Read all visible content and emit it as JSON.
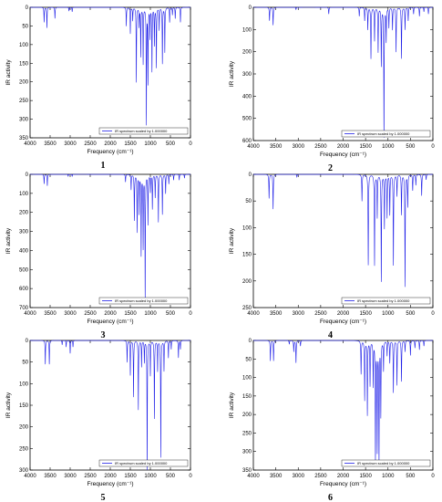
{
  "figure": {
    "background": "#ffffff",
    "line_color": "#1f1fe8"
  },
  "chart_data": [
    {
      "type": "line",
      "label": "1",
      "xlabel": "Frequency (cm⁻¹)",
      "ylabel": "IR activity",
      "xlim": [
        4000,
        0
      ],
      "ylim": [
        350,
        0
      ],
      "xticks": [
        4000,
        3500,
        3000,
        2500,
        2000,
        1500,
        1000,
        500,
        0
      ],
      "yticks": [
        0,
        50,
        100,
        150,
        200,
        250,
        300,
        350
      ],
      "legend": "IR spectrum scaled by 1.000000",
      "legend_loc": "lower right",
      "peaks": [
        [
          3650,
          40
        ],
        [
          3580,
          55
        ],
        [
          3380,
          30
        ],
        [
          3030,
          10
        ],
        [
          2950,
          12
        ],
        [
          1600,
          50
        ],
        [
          1500,
          70
        ],
        [
          1440,
          35
        ],
        [
          1350,
          200
        ],
        [
          1280,
          50
        ],
        [
          1240,
          130
        ],
        [
          1180,
          150
        ],
        [
          1100,
          310
        ],
        [
          1060,
          200
        ],
        [
          1010,
          80
        ],
        [
          960,
          170
        ],
        [
          900,
          100
        ],
        [
          850,
          160
        ],
        [
          780,
          60
        ],
        [
          700,
          150
        ],
        [
          640,
          120
        ],
        [
          520,
          40
        ],
        [
          450,
          20
        ],
        [
          380,
          30
        ],
        [
          250,
          40
        ]
      ]
    },
    {
      "type": "line",
      "label": "2",
      "xlabel": "Frequency (cm⁻¹)",
      "ylabel": "IR activity",
      "xlim": [
        4000,
        0
      ],
      "ylim": [
        600,
        0
      ],
      "xticks": [
        4000,
        3500,
        3000,
        2500,
        2000,
        1500,
        1000,
        500,
        0
      ],
      "yticks": [
        0,
        100,
        200,
        300,
        400,
        500,
        600
      ],
      "legend": "IR spectrum scaled by 1.000000",
      "legend_loc": "lower right",
      "peaks": [
        [
          3640,
          60
        ],
        [
          3560,
          80
        ],
        [
          3050,
          10
        ],
        [
          2320,
          30
        ],
        [
          1640,
          40
        ],
        [
          1520,
          60
        ],
        [
          1450,
          100
        ],
        [
          1380,
          230
        ],
        [
          1300,
          150
        ],
        [
          1220,
          200
        ],
        [
          1150,
          260
        ],
        [
          1090,
          580
        ],
        [
          1040,
          150
        ],
        [
          980,
          90
        ],
        [
          900,
          100
        ],
        [
          820,
          200
        ],
        [
          700,
          230
        ],
        [
          620,
          100
        ],
        [
          550,
          60
        ],
        [
          430,
          30
        ],
        [
          300,
          40
        ],
        [
          200,
          20
        ],
        [
          100,
          30
        ]
      ]
    },
    {
      "type": "line",
      "label": "3",
      "xlabel": "Frequency (cm⁻¹)",
      "ylabel": "IR activity",
      "xlim": [
        4000,
        0
      ],
      "ylim": [
        700,
        0
      ],
      "xticks": [
        4000,
        3500,
        3000,
        2500,
        2000,
        1500,
        1000,
        500,
        0
      ],
      "yticks": [
        0,
        100,
        200,
        300,
        400,
        500,
        600,
        700
      ],
      "legend": "IR spectrum scaled by 1.000000",
      "legend_loc": "lower right",
      "peaks": [
        [
          3650,
          50
        ],
        [
          3570,
          60
        ],
        [
          3050,
          10
        ],
        [
          2950,
          10
        ],
        [
          1620,
          40
        ],
        [
          1480,
          80
        ],
        [
          1400,
          240
        ],
        [
          1330,
          300
        ],
        [
          1280,
          200
        ],
        [
          1230,
          420
        ],
        [
          1180,
          380
        ],
        [
          1130,
          650
        ],
        [
          1060,
          260
        ],
        [
          1000,
          90
        ],
        [
          950,
          180
        ],
        [
          880,
          120
        ],
        [
          800,
          250
        ],
        [
          700,
          210
        ],
        [
          620,
          100
        ],
        [
          540,
          50
        ],
        [
          420,
          30
        ],
        [
          280,
          30
        ],
        [
          150,
          20
        ]
      ]
    },
    {
      "type": "line",
      "label": "4",
      "xlabel": "Frequency (cm⁻¹)",
      "ylabel": "IR activity",
      "xlim": [
        4000,
        0
      ],
      "ylim": [
        250,
        0
      ],
      "xticks": [
        4000,
        3500,
        3000,
        2500,
        2000,
        1500,
        1000,
        500,
        0
      ],
      "yticks": [
        0,
        50,
        100,
        150,
        200,
        250
      ],
      "legend": "IR spectrum scaled by 1.000000",
      "legend_loc": "lower right",
      "peaks": [
        [
          3650,
          45
        ],
        [
          3560,
          65
        ],
        [
          3030,
          5
        ],
        [
          1580,
          50
        ],
        [
          1440,
          170
        ],
        [
          1300,
          170
        ],
        [
          1240,
          80
        ],
        [
          1150,
          200
        ],
        [
          1080,
          100
        ],
        [
          1020,
          80
        ],
        [
          960,
          75
        ],
        [
          880,
          170
        ],
        [
          800,
          40
        ],
        [
          700,
          75
        ],
        [
          620,
          210
        ],
        [
          560,
          60
        ],
        [
          450,
          30
        ],
        [
          380,
          20
        ],
        [
          250,
          40
        ],
        [
          150,
          10
        ]
      ]
    },
    {
      "type": "line",
      "label": "5",
      "xlabel": "Frequency (cm⁻¹)",
      "ylabel": "IR activity",
      "xlim": [
        4000,
        0
      ],
      "ylim": [
        300,
        0
      ],
      "xticks": [
        4000,
        3500,
        3000,
        2500,
        2000,
        1500,
        1000,
        500,
        0
      ],
      "yticks": [
        0,
        50,
        100,
        150,
        200,
        250,
        300
      ],
      "legend": "IR spectrum scaled by 1.000000",
      "legend_loc": "lower right",
      "peaks": [
        [
          3620,
          55
        ],
        [
          3520,
          55
        ],
        [
          3200,
          10
        ],
        [
          3100,
          15
        ],
        [
          3000,
          30
        ],
        [
          2930,
          15
        ],
        [
          1580,
          50
        ],
        [
          1500,
          80
        ],
        [
          1420,
          130
        ],
        [
          1300,
          160
        ],
        [
          1220,
          60
        ],
        [
          1150,
          50
        ],
        [
          1080,
          300
        ],
        [
          1000,
          80
        ],
        [
          900,
          180
        ],
        [
          820,
          70
        ],
        [
          740,
          270
        ],
        [
          660,
          70
        ],
        [
          550,
          40
        ],
        [
          480,
          20
        ],
        [
          300,
          40
        ],
        [
          250,
          20
        ]
      ]
    },
    {
      "type": "line",
      "label": "6",
      "xlabel": "Frequency (cm⁻¹)",
      "ylabel": "IR activity",
      "xlim": [
        4000,
        0
      ],
      "ylim": [
        350,
        0
      ],
      "xticks": [
        4000,
        3500,
        3000,
        2500,
        2000,
        1500,
        1000,
        500,
        0
      ],
      "yticks": [
        0,
        50,
        100,
        150,
        200,
        250,
        300,
        350
      ],
      "legend": "IR spectrum scaled by 1.000000",
      "legend_loc": "lower right",
      "peaks": [
        [
          3620,
          55
        ],
        [
          3550,
          55
        ],
        [
          3200,
          10
        ],
        [
          3100,
          30
        ],
        [
          3050,
          60
        ],
        [
          2950,
          15
        ],
        [
          1600,
          90
        ],
        [
          1520,
          160
        ],
        [
          1460,
          200
        ],
        [
          1400,
          120
        ],
        [
          1330,
          120
        ],
        [
          1280,
          320
        ],
        [
          1240,
          290
        ],
        [
          1200,
          320
        ],
        [
          1160,
          200
        ],
        [
          1100,
          80
        ],
        [
          1020,
          40
        ],
        [
          960,
          60
        ],
        [
          880,
          140
        ],
        [
          800,
          120
        ],
        [
          700,
          110
        ],
        [
          620,
          30
        ],
        [
          500,
          40
        ],
        [
          400,
          20
        ],
        [
          300,
          25
        ],
        [
          200,
          15
        ]
      ]
    }
  ]
}
